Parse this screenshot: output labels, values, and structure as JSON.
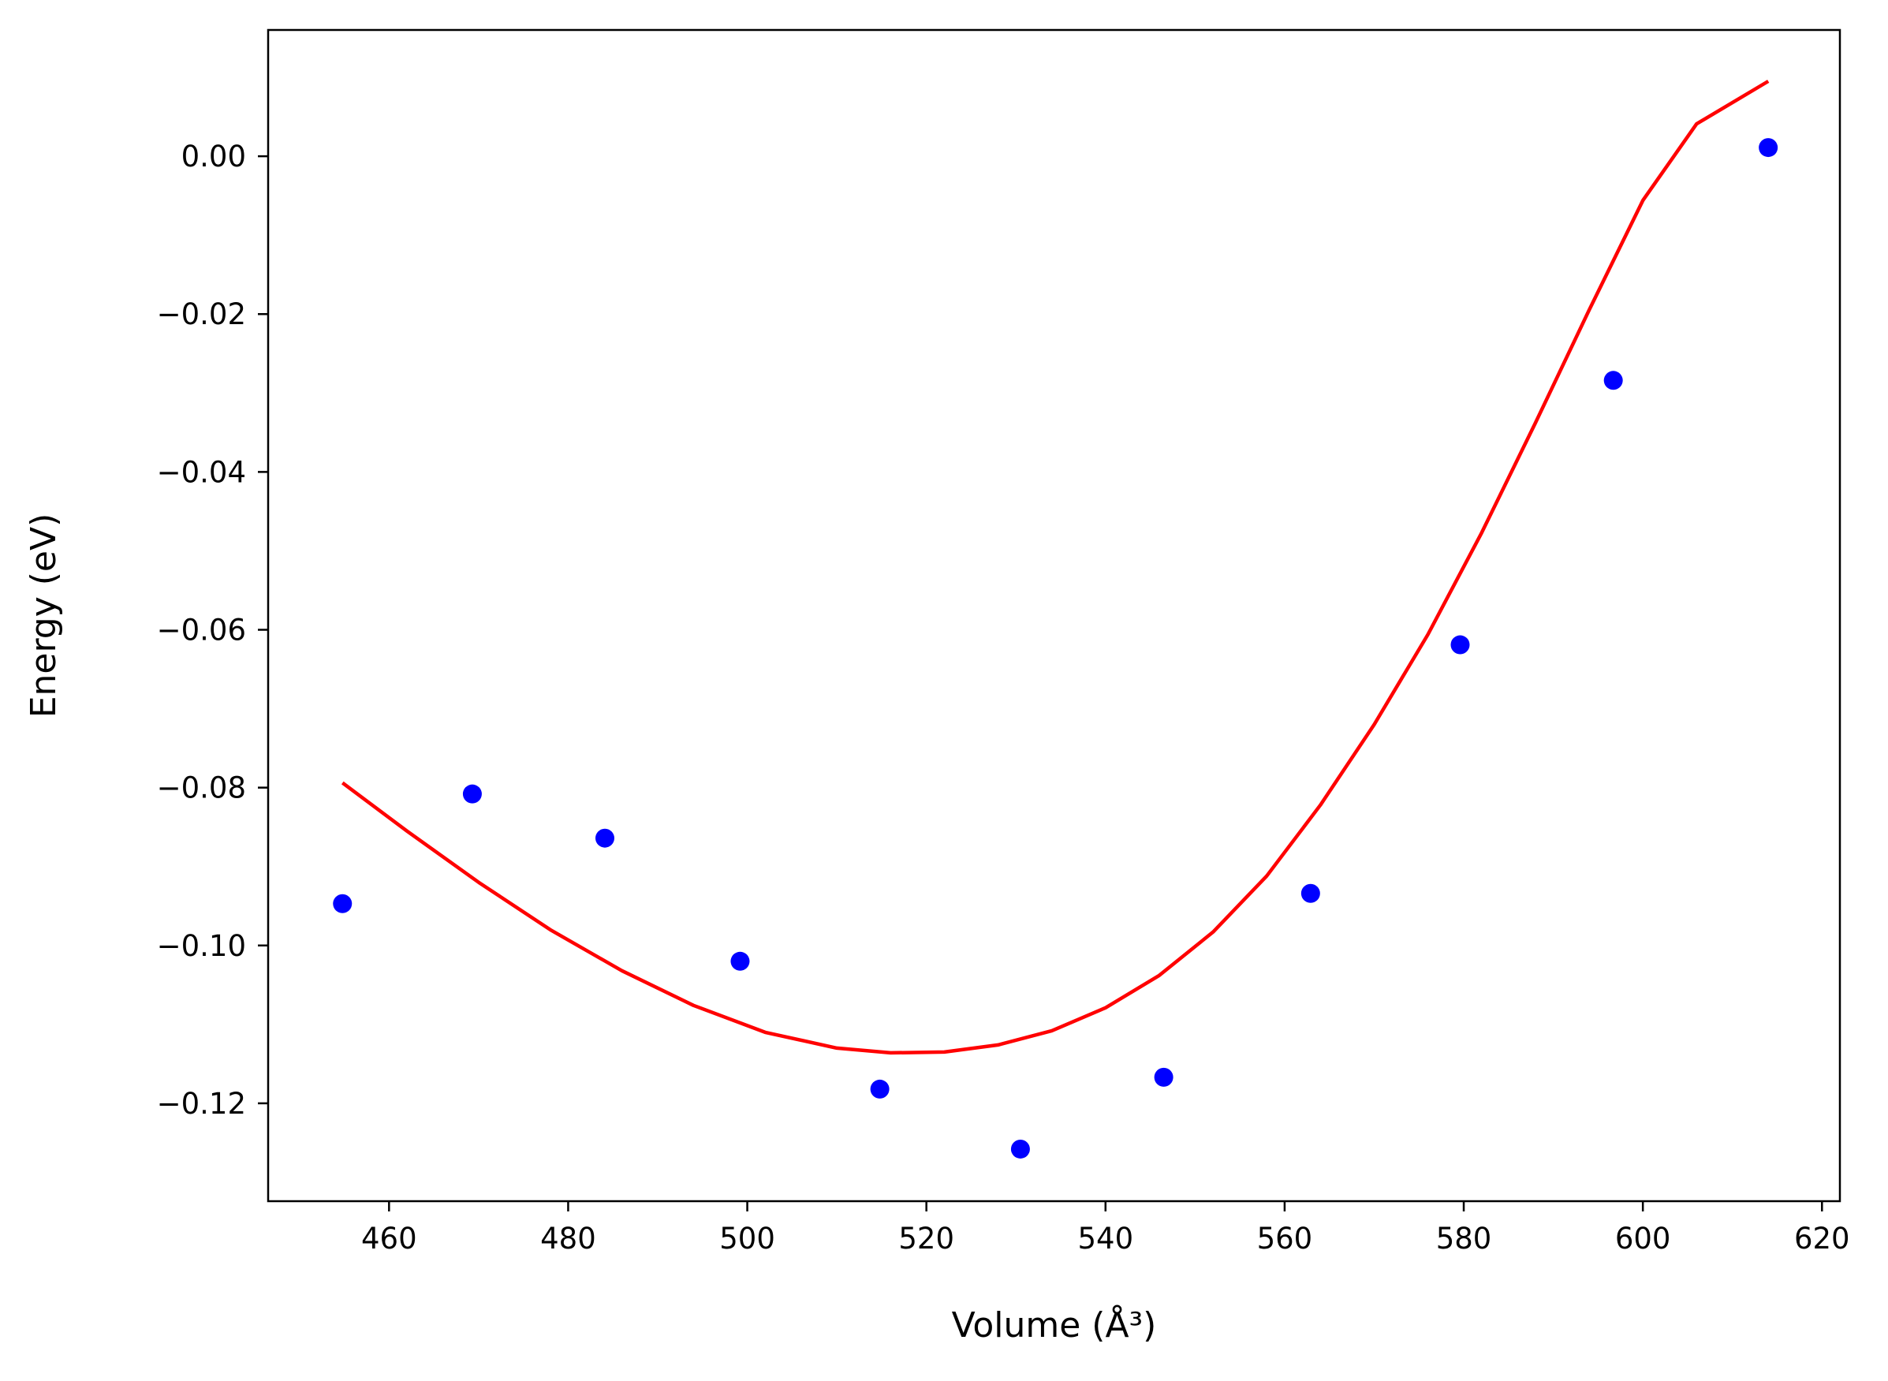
{
  "chart_data": {
    "type": "scatter",
    "xlabel": "Volume (Å³)",
    "ylabel": "Energy (eV)",
    "xlim": [
      446.5,
      622.0
    ],
    "ylim": [
      -0.1324,
      0.016
    ],
    "x_ticks": [
      460,
      480,
      500,
      520,
      540,
      560,
      580,
      600,
      620
    ],
    "y_ticks": [
      0.0,
      -0.02,
      -0.04,
      -0.06,
      -0.08,
      -0.1,
      -0.12
    ],
    "x_tick_labels": [
      "460",
      "480",
      "500",
      "520",
      "540",
      "560",
      "580",
      "600",
      "620"
    ],
    "y_tick_labels": [
      "0.00",
      "−0.02",
      "−0.04",
      "−0.06",
      "−0.08",
      "−0.10",
      "−0.12"
    ],
    "grid": false,
    "series": [
      {
        "kind": "points",
        "color": "#0000ff",
        "x": [
          454.8,
          469.3,
          484.1,
          499.2,
          514.8,
          530.5,
          546.5,
          562.9,
          579.6,
          596.7,
          614.0
        ],
        "y": [
          -0.0947,
          -0.0808,
          -0.0864,
          -0.102,
          -0.1182,
          -0.1258,
          -0.1167,
          -0.0934,
          -0.0619,
          -0.0284,
          0.0011
        ]
      },
      {
        "kind": "fit-line",
        "color": "#ff0000",
        "x": [
          454.8,
          462,
          470,
          478,
          486,
          494,
          502,
          510,
          516,
          522,
          528,
          534,
          540,
          546,
          552,
          558,
          564,
          570,
          576,
          582,
          588,
          594,
          600,
          606,
          614.0
        ],
        "y": [
          -0.0794,
          -0.0855,
          -0.092,
          -0.098,
          -0.1032,
          -0.1076,
          -0.111,
          -0.113,
          -0.1136,
          -0.1135,
          -0.1126,
          -0.1108,
          -0.1079,
          -0.1038,
          -0.0983,
          -0.0912,
          -0.0822,
          -0.072,
          -0.0606,
          -0.0477,
          -0.0338,
          -0.0195,
          -0.0056,
          0.0041,
          0.0095
        ]
      }
    ]
  }
}
